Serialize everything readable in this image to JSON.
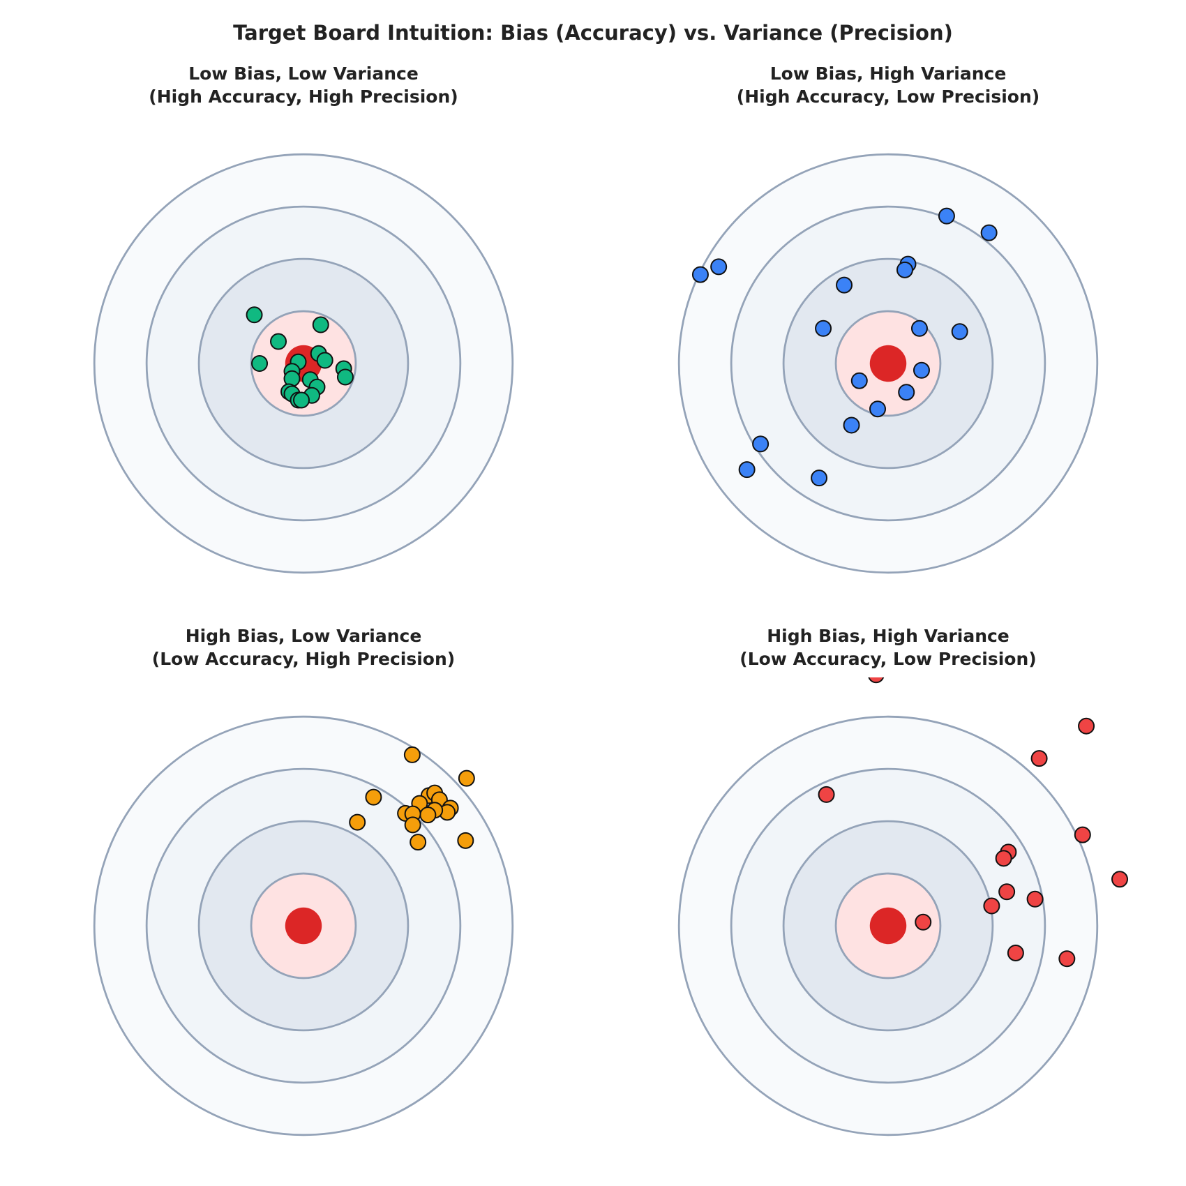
{
  "title": "Target Board Intuition: Bias (Accuracy) vs. Variance (Precision)",
  "target": {
    "rings": [
      4,
      3,
      2,
      1
    ],
    "ring_colors": [
      "#f8fafc",
      "#f1f5f9",
      "#e2e8f0",
      "#fee2e2"
    ],
    "ring_stroke": "#94a3b8",
    "bullseye": 0.35,
    "bullseye_color": "#dc2626"
  },
  "chart_data": [
    {
      "type": "scatter",
      "title": "Low Bias, Low Variance\n(High Accuracy, High Precision)",
      "color": "#10b981",
      "xlim": [
        -4.75,
        4.75
      ],
      "ylim": [
        -4.75,
        4.75
      ],
      "x": [
        -0.94,
        0.33,
        -0.48,
        -0.84,
        -0.1,
        0.29,
        0.41,
        0.77,
        0.8,
        -0.22,
        -0.22,
        0.13,
        0.26,
        0.16,
        -0.28,
        -0.22,
        -0.1,
        -0.04
      ],
      "y": [
        0.93,
        0.74,
        0.42,
        0.0,
        0.03,
        0.19,
        0.06,
        -0.1,
        -0.26,
        -0.15,
        -0.29,
        -0.31,
        -0.45,
        -0.61,
        -0.54,
        -0.58,
        -0.7,
        -0.7
      ]
    },
    {
      "type": "scatter",
      "title": "Low Bias, High Variance\n(High Accuracy, Low Precision)",
      "color": "#3b82f6",
      "xlim": [
        -4.75,
        4.75
      ],
      "ylim": [
        -4.75,
        4.75
      ],
      "x": [
        1.12,
        1.93,
        -3.59,
        -3.24,
        0.38,
        0.32,
        -0.84,
        -1.24,
        0.6,
        1.37,
        0.64,
        -0.55,
        0.35,
        -0.2,
        -0.7,
        -2.44,
        -2.7,
        -1.32
      ],
      "y": [
        2.82,
        2.5,
        1.7,
        1.85,
        1.9,
        1.79,
        1.5,
        0.67,
        0.67,
        0.61,
        -0.13,
        -0.33,
        -0.55,
        -0.87,
        -1.18,
        -1.54,
        -2.03,
        -2.19
      ]
    },
    {
      "type": "scatter",
      "title": "High Bias, Low Variance\n(Low Accuracy, High Precision)",
      "color": "#f59e0b",
      "xlim": [
        -4.75,
        4.75
      ],
      "ylim": [
        -4.75,
        4.75
      ],
      "x": [
        2.08,
        3.12,
        1.34,
        1.03,
        2.4,
        2.51,
        2.6,
        2.22,
        2.81,
        2.75,
        2.51,
        2.38,
        1.95,
        2.09,
        2.09,
        2.19,
        3.1
      ],
      "y": [
        3.27,
        2.82,
        2.46,
        1.98,
        2.49,
        2.54,
        2.41,
        2.34,
        2.25,
        2.17,
        2.21,
        2.12,
        2.15,
        2.14,
        1.93,
        1.6,
        1.63
      ]
    },
    {
      "type": "scatter",
      "title": "High Bias, High Variance\n(Low Accuracy, Low Precision)",
      "color": "#ef4444",
      "xlim": [
        -4.75,
        4.75
      ],
      "ylim": [
        -4.75,
        4.75
      ],
      "x": [
        -0.23,
        3.79,
        2.89,
        -1.18,
        3.72,
        2.3,
        2.21,
        4.43,
        2.27,
        2.81,
        1.98,
        0.67,
        2.44,
        3.42
      ],
      "y": [
        4.8,
        3.82,
        3.2,
        2.51,
        1.74,
        1.41,
        1.29,
        0.89,
        0.65,
        0.51,
        0.38,
        0.07,
        -0.52,
        -0.63
      ]
    }
  ]
}
